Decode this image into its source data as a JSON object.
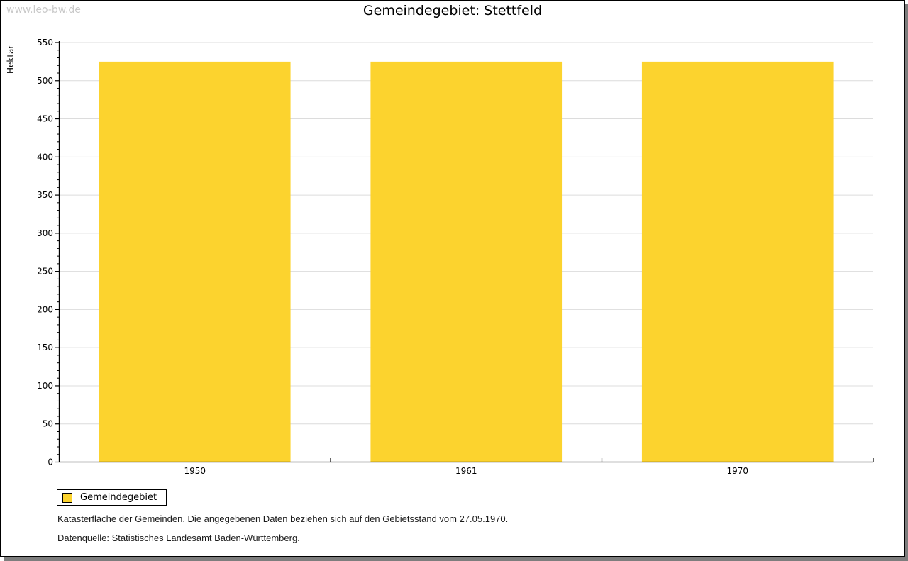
{
  "watermark": "www.leo-bw.de",
  "title": "Gemeindegebiet: Stettfeld",
  "chart_data": {
    "type": "bar",
    "title": "Gemeindegebiet: Stettfeld",
    "categories": [
      "1950",
      "1961",
      "1970"
    ],
    "series": [
      {
        "name": "Gemeindegebiet",
        "values": [
          525,
          525,
          525
        ]
      }
    ],
    "xlabel": "",
    "ylabel": "Hektar",
    "ylim": [
      0,
      550
    ],
    "ytick_major": 50,
    "ytick_minor": 10,
    "grid": true,
    "legend_position": "bottom-left",
    "bar_color": "#FCD32E",
    "grid_color": "#DCDCDC",
    "axis_color": "#000000"
  },
  "legend": {
    "items": [
      {
        "label": "Gemeindegebiet",
        "color": "#FCD32E"
      }
    ]
  },
  "footer": {
    "line1": "Katasterfläche der Gemeinden. Die angegebenen Daten beziehen sich auf den Gebietsstand vom 27.05.1970.",
    "line2": "Datenquelle: Statistisches Landesamt Baden-Württemberg."
  }
}
